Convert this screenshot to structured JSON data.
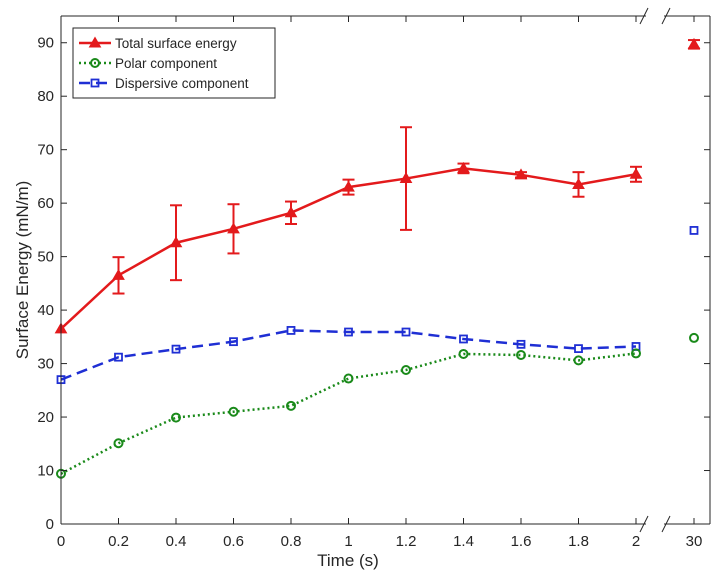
{
  "chart_data": {
    "type": "line",
    "xlabel": "Time (s)",
    "ylabel": "Surface Energy (mN/m)",
    "ylim": [
      0,
      95
    ],
    "x_ticks": [
      "0",
      "0.2",
      "0.4",
      "0.6",
      "0.8",
      "1",
      "1.2",
      "1.4",
      "1.6",
      "1.8",
      "2"
    ],
    "x_break_tick": "30",
    "y_ticks": [
      "0",
      "10",
      "20",
      "30",
      "40",
      "50",
      "60",
      "70",
      "80",
      "90"
    ],
    "x_main": [
      0,
      0.2,
      0.4,
      0.6,
      0.8,
      1.0,
      1.2,
      1.4,
      1.6,
      1.8,
      2.0
    ],
    "x_break": 30,
    "axis_break": true,
    "grid": false,
    "legend_position": "top-left",
    "series": [
      {
        "name": "Total surface energy",
        "color": "#e31a1c",
        "line_style": "solid",
        "marker": "triangle",
        "values": [
          36.5,
          46.5,
          52.6,
          55.2,
          58.2,
          63.0,
          64.6,
          66.5,
          65.3,
          63.5,
          65.4
        ],
        "error": [
          0,
          3.4,
          7.0,
          4.6,
          2.1,
          1.4,
          9.6,
          0.9,
          0.5,
          2.3,
          1.4
        ],
        "break_value": 89.7,
        "break_error": 0.8
      },
      {
        "name": "Polar component",
        "color": "#1a8a1a",
        "line_style": "dotted",
        "marker": "circle",
        "values": [
          9.4,
          15.1,
          19.9,
          21.0,
          22.1,
          27.2,
          28.8,
          31.8,
          31.6,
          30.6,
          31.9
        ],
        "break_value": 34.8
      },
      {
        "name": "Dispersive component",
        "color": "#1f2fd4",
        "line_style": "dashed",
        "marker": "square",
        "values": [
          27.0,
          31.2,
          32.7,
          34.1,
          36.2,
          35.9,
          35.9,
          34.6,
          33.6,
          32.8,
          33.2
        ],
        "break_value": 54.9
      }
    ]
  }
}
